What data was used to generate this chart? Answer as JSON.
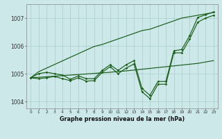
{
  "title": "Graphe pression niveau de la mer (hPa)",
  "bg_color": "#cce8e8",
  "line_color": "#1a5c1a",
  "grid_color": "#aacccc",
  "ylim": [
    1003.75,
    1007.5
  ],
  "yticks": [
    1004,
    1005,
    1006,
    1007
  ],
  "xlim": [
    -0.5,
    23.5
  ],
  "x_ticks": [
    0,
    1,
    2,
    3,
    4,
    5,
    6,
    7,
    8,
    9,
    10,
    11,
    12,
    13,
    14,
    15,
    16,
    17,
    18,
    19,
    20,
    21,
    22,
    23
  ],
  "line_main": [
    1004.85,
    1004.82,
    1004.85,
    1004.9,
    1004.82,
    1004.75,
    1004.85,
    1004.73,
    1004.75,
    1005.05,
    1005.25,
    1005.0,
    1005.2,
    1005.35,
    1004.35,
    1004.1,
    1004.62,
    1004.62,
    1005.75,
    1005.75,
    1006.25,
    1006.85,
    1007.0,
    1007.1
  ],
  "line_upper": [
    1004.85,
    1005.0,
    1005.05,
    1005.0,
    1004.95,
    1004.8,
    1004.92,
    1004.82,
    1004.82,
    1005.12,
    1005.32,
    1005.12,
    1005.32,
    1005.47,
    1004.47,
    1004.22,
    1004.72,
    1004.72,
    1005.82,
    1005.87,
    1006.37,
    1007.02,
    1007.12,
    1007.22
  ],
  "trend_high": [
    1004.85,
    1005.07,
    1005.2,
    1005.33,
    1005.46,
    1005.59,
    1005.72,
    1005.85,
    1005.98,
    1006.05,
    1006.15,
    1006.25,
    1006.35,
    1006.45,
    1006.55,
    1006.6,
    1006.7,
    1006.8,
    1006.9,
    1007.0,
    1007.05,
    1007.1,
    1007.15,
    1007.2
  ],
  "trend_low": [
    1004.85,
    1004.87,
    1004.89,
    1004.91,
    1004.93,
    1004.95,
    1004.97,
    1004.99,
    1005.01,
    1005.03,
    1005.05,
    1005.08,
    1005.1,
    1005.13,
    1005.16,
    1005.19,
    1005.22,
    1005.25,
    1005.28,
    1005.31,
    1005.34,
    1005.37,
    1005.42,
    1005.47
  ]
}
